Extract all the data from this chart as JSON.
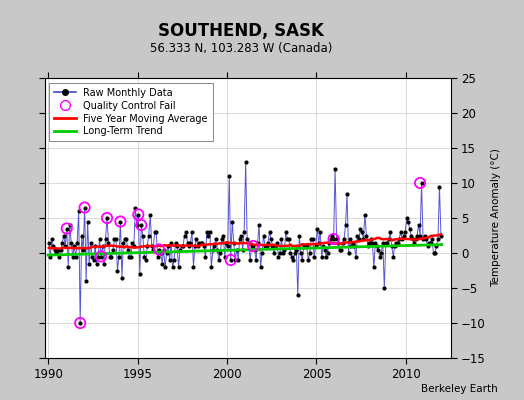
{
  "title": "SOUTHEND, SASK",
  "subtitle": "56.333 N, 103.283 W (Canada)",
  "ylabel": "Temperature Anomaly (°C)",
  "credit": "Berkeley Earth",
  "xlim": [
    1989.8,
    2012.5
  ],
  "ylim": [
    -15,
    25
  ],
  "yticks": [
    -15,
    -10,
    -5,
    0,
    5,
    10,
    15,
    20,
    25
  ],
  "xticks": [
    1990,
    1995,
    2000,
    2005,
    2010
  ],
  "bg_color": "#c8c8c8",
  "plot_bg_color": "#ffffff",
  "raw_line_color": "#4444cc",
  "raw_dot_color": "#000000",
  "qc_fail_color": "#ff00ff",
  "moving_avg_color": "#ff0000",
  "trend_color": "#00cc00",
  "raw_data": {
    "times": [
      1990.042,
      1990.125,
      1990.208,
      1990.292,
      1990.375,
      1990.458,
      1990.542,
      1990.625,
      1990.708,
      1990.792,
      1990.875,
      1990.958,
      1991.042,
      1991.125,
      1991.208,
      1991.292,
      1991.375,
      1991.458,
      1991.542,
      1991.625,
      1991.708,
      1991.792,
      1991.875,
      1991.958,
      1992.042,
      1992.125,
      1992.208,
      1992.292,
      1992.375,
      1992.458,
      1992.542,
      1992.625,
      1992.708,
      1992.792,
      1992.875,
      1992.958,
      1993.042,
      1993.125,
      1993.208,
      1993.292,
      1993.375,
      1993.458,
      1993.542,
      1993.625,
      1993.708,
      1993.792,
      1993.875,
      1993.958,
      1994.042,
      1994.125,
      1994.208,
      1994.292,
      1994.375,
      1994.458,
      1994.542,
      1994.625,
      1994.708,
      1994.792,
      1994.875,
      1994.958,
      1995.042,
      1995.125,
      1995.208,
      1995.292,
      1995.375,
      1995.458,
      1995.542,
      1995.625,
      1995.708,
      1995.792,
      1995.875,
      1995.958,
      1996.042,
      1996.125,
      1996.208,
      1996.292,
      1996.375,
      1996.458,
      1996.542,
      1996.625,
      1996.708,
      1996.792,
      1996.875,
      1996.958,
      1997.042,
      1997.125,
      1997.208,
      1997.292,
      1997.375,
      1997.458,
      1997.542,
      1997.625,
      1997.708,
      1997.792,
      1997.875,
      1997.958,
      1998.042,
      1998.125,
      1998.208,
      1998.292,
      1998.375,
      1998.458,
      1998.542,
      1998.625,
      1998.708,
      1998.792,
      1998.875,
      1998.958,
      1999.042,
      1999.125,
      1999.208,
      1999.292,
      1999.375,
      1999.458,
      1999.542,
      1999.625,
      1999.708,
      1999.792,
      1999.875,
      1999.958,
      2000.042,
      2000.125,
      2000.208,
      2000.292,
      2000.375,
      2000.458,
      2000.542,
      2000.625,
      2000.708,
      2000.792,
      2000.875,
      2000.958,
      2001.042,
      2001.125,
      2001.208,
      2001.292,
      2001.375,
      2001.458,
      2001.542,
      2001.625,
      2001.708,
      2001.792,
      2001.875,
      2001.958,
      2002.042,
      2002.125,
      2002.208,
      2002.292,
      2002.375,
      2002.458,
      2002.542,
      2002.625,
      2002.708,
      2002.792,
      2002.875,
      2002.958,
      2003.042,
      2003.125,
      2003.208,
      2003.292,
      2003.375,
      2003.458,
      2003.542,
      2003.625,
      2003.708,
      2003.792,
      2003.875,
      2003.958,
      2004.042,
      2004.125,
      2004.208,
      2004.292,
      2004.375,
      2004.458,
      2004.542,
      2004.625,
      2004.708,
      2004.792,
      2004.875,
      2004.958,
      2005.042,
      2005.125,
      2005.208,
      2005.292,
      2005.375,
      2005.458,
      2005.542,
      2005.625,
      2005.708,
      2005.792,
      2005.875,
      2005.958,
      2006.042,
      2006.125,
      2006.208,
      2006.292,
      2006.375,
      2006.458,
      2006.542,
      2006.625,
      2006.708,
      2006.792,
      2006.875,
      2006.958,
      2007.042,
      2007.125,
      2007.208,
      2007.292,
      2007.375,
      2007.458,
      2007.542,
      2007.625,
      2007.708,
      2007.792,
      2007.875,
      2007.958,
      2008.042,
      2008.125,
      2008.208,
      2008.292,
      2008.375,
      2008.458,
      2008.542,
      2008.625,
      2008.708,
      2008.792,
      2008.875,
      2008.958,
      2009.042,
      2009.125,
      2009.208,
      2009.292,
      2009.375,
      2009.458,
      2009.542,
      2009.625,
      2009.708,
      2009.792,
      2009.875,
      2009.958,
      2010.042,
      2010.125,
      2010.208,
      2010.292,
      2010.375,
      2010.458,
      2010.542,
      2010.625,
      2010.708,
      2010.792,
      2010.875,
      2010.958,
      2011.042,
      2011.125,
      2011.208,
      2011.292,
      2011.375,
      2011.458,
      2011.542,
      2011.625,
      2011.708,
      2011.792,
      2011.875,
      2011.958
    ],
    "values": [
      1.5,
      -0.5,
      2.0,
      1.0,
      0.5,
      0.0,
      0.5,
      -0.5,
      0.5,
      1.5,
      2.5,
      1.0,
      3.5,
      -2.0,
      4.0,
      1.5,
      -0.5,
      1.0,
      -0.5,
      1.5,
      6.0,
      -10.0,
      2.5,
      0.5,
      6.5,
      -4.0,
      4.5,
      -1.5,
      1.5,
      -0.5,
      -1.0,
      1.0,
      -1.5,
      -0.5,
      2.0,
      -0.5,
      1.0,
      -1.5,
      2.0,
      5.0,
      1.5,
      -0.5,
      -0.5,
      0.5,
      2.0,
      2.0,
      -2.5,
      -0.5,
      4.5,
      -3.5,
      1.5,
      2.0,
      2.0,
      0.5,
      -0.5,
      -0.5,
      1.5,
      1.0,
      6.5,
      4.0,
      5.5,
      -3.0,
      4.0,
      2.5,
      -0.5,
      -1.0,
      1.0,
      2.5,
      5.5,
      1.0,
      0.5,
      3.0,
      3.0,
      -0.5,
      0.5,
      0.0,
      -1.5,
      0.5,
      -2.0,
      0.0,
      1.0,
      -1.0,
      1.5,
      -2.0,
      -1.0,
      1.5,
      1.0,
      -2.0,
      0.5,
      1.0,
      1.0,
      2.5,
      3.0,
      1.5,
      1.0,
      1.5,
      3.0,
      -2.0,
      1.0,
      2.0,
      1.0,
      1.5,
      1.5,
      1.5,
      1.0,
      -0.5,
      3.0,
      2.5,
      3.0,
      -2.0,
      0.5,
      1.0,
      2.0,
      0.5,
      -1.0,
      0.0,
      2.0,
      2.5,
      -0.5,
      1.5,
      1.0,
      11.0,
      -1.0,
      4.5,
      1.5,
      -1.0,
      0.5,
      -1.0,
      2.0,
      2.5,
      0.5,
      3.0,
      13.0,
      2.0,
      1.5,
      -1.0,
      1.0,
      1.0,
      0.5,
      -1.0,
      1.5,
      4.0,
      -2.0,
      0.0,
      2.5,
      1.0,
      1.0,
      1.5,
      3.0,
      2.0,
      1.0,
      0.0,
      1.0,
      1.5,
      -0.5,
      0.0,
      2.0,
      0.0,
      0.5,
      3.0,
      2.0,
      2.0,
      0.0,
      -0.5,
      -1.0,
      0.0,
      0.5,
      -6.0,
      2.5,
      0.0,
      -1.0,
      1.0,
      1.0,
      1.0,
      -1.0,
      0.0,
      2.0,
      2.0,
      -0.5,
      1.0,
      3.5,
      1.5,
      3.0,
      -0.5,
      1.0,
      0.5,
      -0.5,
      0.0,
      1.5,
      2.0,
      2.5,
      2.0,
      12.0,
      2.0,
      1.5,
      0.5,
      0.5,
      1.5,
      2.0,
      4.0,
      8.5,
      0.0,
      2.0,
      1.0,
      1.5,
      1.0,
      -0.5,
      2.5,
      2.0,
      3.5,
      3.0,
      2.0,
      5.5,
      2.5,
      1.0,
      1.5,
      2.0,
      1.5,
      -2.0,
      1.5,
      1.0,
      0.5,
      -0.5,
      0.0,
      1.5,
      -5.0,
      1.5,
      1.5,
      2.0,
      3.0,
      1.0,
      -0.5,
      1.0,
      1.5,
      1.5,
      2.0,
      3.0,
      2.0,
      2.5,
      3.0,
      5.0,
      4.5,
      3.5,
      2.5,
      2.0,
      1.5,
      2.0,
      2.5,
      4.0,
      2.5,
      10.0,
      2.0,
      2.5,
      2.0,
      1.0,
      1.5,
      1.5,
      2.0,
      0.0,
      0.0,
      1.0,
      2.0,
      9.5,
      2.5
    ]
  },
  "qc_fail_times": [
    1991.042,
    1991.792,
    1992.042,
    1992.958,
    1993.292,
    1994.042,
    1995.042,
    1995.208,
    1996.208,
    2000.208,
    2001.458,
    2005.958,
    2010.792
  ],
  "qc_fail_values": [
    3.5,
    -10.0,
    6.5,
    -0.5,
    5.0,
    4.5,
    5.5,
    4.0,
    0.5,
    -1.0,
    1.0,
    2.0,
    10.0
  ],
  "moving_avg_start": 1992.0,
  "moving_avg_end": 2010.5,
  "trend_x": [
    1990.0,
    2012.0
  ],
  "trend_y": [
    -0.3,
    1.2
  ]
}
